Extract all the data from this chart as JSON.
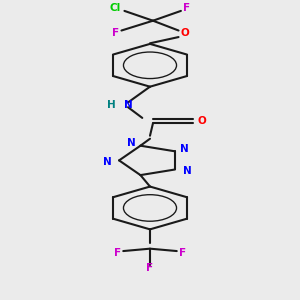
{
  "bg_color": "#ebebeb",
  "bond_color": "#1a1a1a",
  "bond_width": 1.5,
  "cl_color": "#00cc00",
  "f_color": "#cc00cc",
  "o_color": "#ff0000",
  "n_color": "#0000ff",
  "h_color": "#008080",
  "figsize": [
    3.0,
    3.0
  ],
  "dpi": 100,
  "xlim": [
    2.5,
    7.5
  ],
  "ylim": [
    0.5,
    10.5
  ]
}
